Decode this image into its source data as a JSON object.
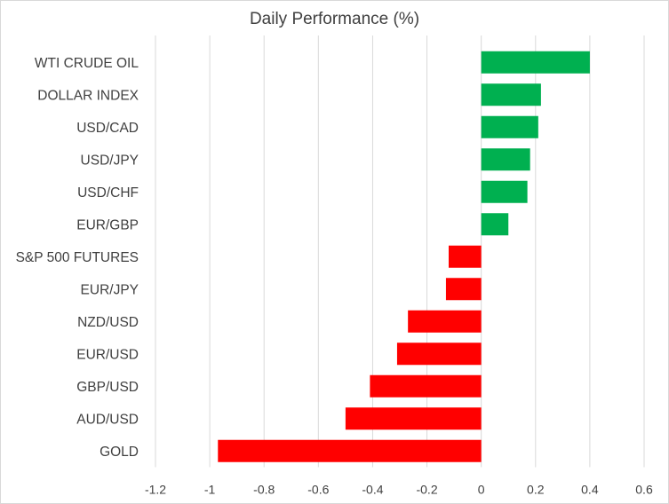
{
  "chart_data": {
    "type": "bar",
    "orientation": "horizontal",
    "title": "Daily Performance (%)",
    "xlabel": "",
    "ylabel": "",
    "categories": [
      "WTI CRUDE OIL",
      "DOLLAR INDEX",
      "USD/CAD",
      "USD/JPY",
      "USD/CHF",
      "EUR/GBP",
      "S&P 500 FUTURES",
      "EUR/JPY",
      "NZD/USD",
      "EUR/USD",
      "GBP/USD",
      "AUD/USD",
      "GOLD"
    ],
    "values": [
      0.4,
      0.22,
      0.21,
      0.18,
      0.17,
      0.1,
      -0.12,
      -0.13,
      -0.27,
      -0.31,
      -0.41,
      -0.5,
      -0.97
    ],
    "xlim": [
      -1.2,
      0.6
    ],
    "xticks": [
      "-1.2",
      "-1",
      "-0.8",
      "-0.6",
      "-0.4",
      "-0.2",
      "0",
      "0.2",
      "0.4",
      "0.6"
    ],
    "grid": "vertical",
    "colors": {
      "positive": "#00b050",
      "negative": "#ff0000",
      "grid": "#d9d9d9",
      "text": "#404040"
    }
  }
}
